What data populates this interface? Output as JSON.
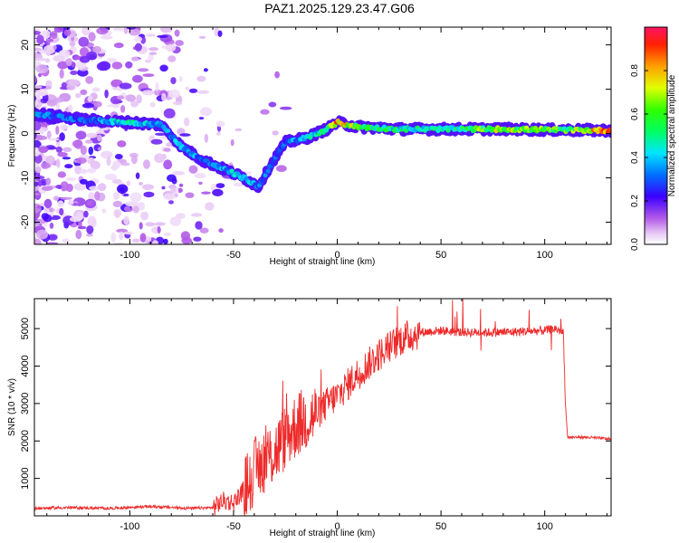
{
  "title": "PAZ1.2025.129.23.47.G06",
  "chart_data": [
    {
      "type": "heatmap",
      "name": "spectrogram",
      "xlabel": "Height of straight line (km)",
      "ylabel": "Frequency (Hz)",
      "xlim": [
        -146,
        132
      ],
      "ylim": [
        -25,
        24
      ],
      "xticks": [
        -100,
        -50,
        0,
        50,
        100
      ],
      "yticks": [
        -20,
        -10,
        0,
        10,
        20
      ],
      "colorbar": {
        "label": "Normalized spectral amplitude",
        "range": [
          0.0,
          1.0
        ],
        "ticks": [
          0.0,
          0.2,
          0.4,
          0.6,
          0.8
        ]
      },
      "ridge": {
        "x": [
          -146,
          -120,
          -100,
          -85,
          -75,
          -65,
          -55,
          -45,
          -38,
          -32,
          -25,
          -15,
          -5,
          0,
          10,
          30,
          50,
          80,
          110,
          132
        ],
        "y": [
          4.5,
          3,
          2.5,
          2,
          -3,
          -6,
          -8,
          -10,
          -12,
          -7,
          -2,
          -1,
          1,
          2.5,
          1.5,
          1,
          1,
          1,
          0.8,
          0.7
        ],
        "amplitude": [
          0.35,
          0.3,
          0.5,
          0.35,
          0.4,
          0.35,
          0.4,
          0.45,
          0.35,
          0.3,
          0.3,
          0.45,
          0.5,
          0.9,
          0.6,
          0.5,
          0.5,
          0.7,
          0.6,
          0.9
        ]
      }
    },
    {
      "type": "line",
      "name": "snr",
      "xlabel": "Height of straight line (km)",
      "ylabel": "SNR (10 * v/v)",
      "xlim": [
        -146,
        132
      ],
      "ylim": [
        0,
        5800
      ],
      "xticks": [
        -100,
        -50,
        0,
        50,
        100
      ],
      "yticks": [
        1000,
        2000,
        3000,
        4000,
        5000
      ],
      "line_color": "#ee2a2a",
      "x": [
        -146,
        -130,
        -110,
        -90,
        -70,
        -60,
        -55,
        -50,
        -45,
        -40,
        -35,
        -30,
        -25,
        -20,
        -15,
        -10,
        -5,
        0,
        5,
        10,
        20,
        30,
        40,
        50,
        60,
        80,
        100,
        105,
        109,
        110,
        111,
        120,
        132
      ],
      "y": [
        200,
        220,
        200,
        250,
        200,
        220,
        400,
        350,
        700,
        1200,
        1500,
        1700,
        2100,
        2400,
        2600,
        2700,
        3000,
        3200,
        3500,
        3800,
        4300,
        4700,
        4900,
        4950,
        4900,
        4900,
        4950,
        5000,
        4900,
        3000,
        2100,
        2100,
        2050
      ]
    }
  ]
}
